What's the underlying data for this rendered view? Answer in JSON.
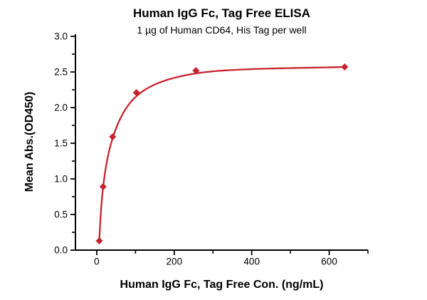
{
  "chart_data": {
    "type": "line",
    "title": "Human IgG Fc, Tag Free ELISA",
    "subtitle": "1 µg of Human CD64, His Tag per well",
    "xlabel": "Human IgG Fc, Tag Free Con. (ng/mL)",
    "ylabel": "Mean Abs.(OD450)",
    "x_scale": "linear",
    "marker": "diamond",
    "series_color": "#C8232D",
    "axis_color": "#000000",
    "grid": false,
    "legend": false,
    "xlim": [
      -55,
      700
    ],
    "ylim": [
      0,
      3
    ],
    "x_major_ticks": [
      0,
      200,
      400,
      600
    ],
    "x_tick_labels": [
      "0",
      "200",
      "400",
      "600"
    ],
    "x_minor_ticks": [
      100,
      300,
      500,
      700
    ],
    "y_major_ticks": [
      0,
      0.5,
      1.0,
      1.5,
      2.0,
      2.5,
      3.0
    ],
    "y_tick_labels": [
      "0.0",
      "0.5",
      "1.0",
      "1.5",
      "2.0",
      "2.5",
      "3.0"
    ],
    "y_minor_ticks": [
      0.25,
      0.75,
      1.25,
      1.75,
      2.25,
      2.75
    ],
    "points": {
      "x": [
        6.6,
        16.4,
        41,
        102.4,
        256,
        640
      ],
      "y": [
        0.13,
        0.89,
        1.59,
        2.21,
        2.52,
        2.57
      ]
    },
    "fit_curve": {
      "model": "4PL fit (sigmoidal dose-response)",
      "x": [
        6.6,
        16.4,
        41,
        102.4,
        256,
        640
      ],
      "y": [
        0.13,
        0.88,
        1.57,
        2.16,
        2.48,
        2.57
      ]
    }
  }
}
